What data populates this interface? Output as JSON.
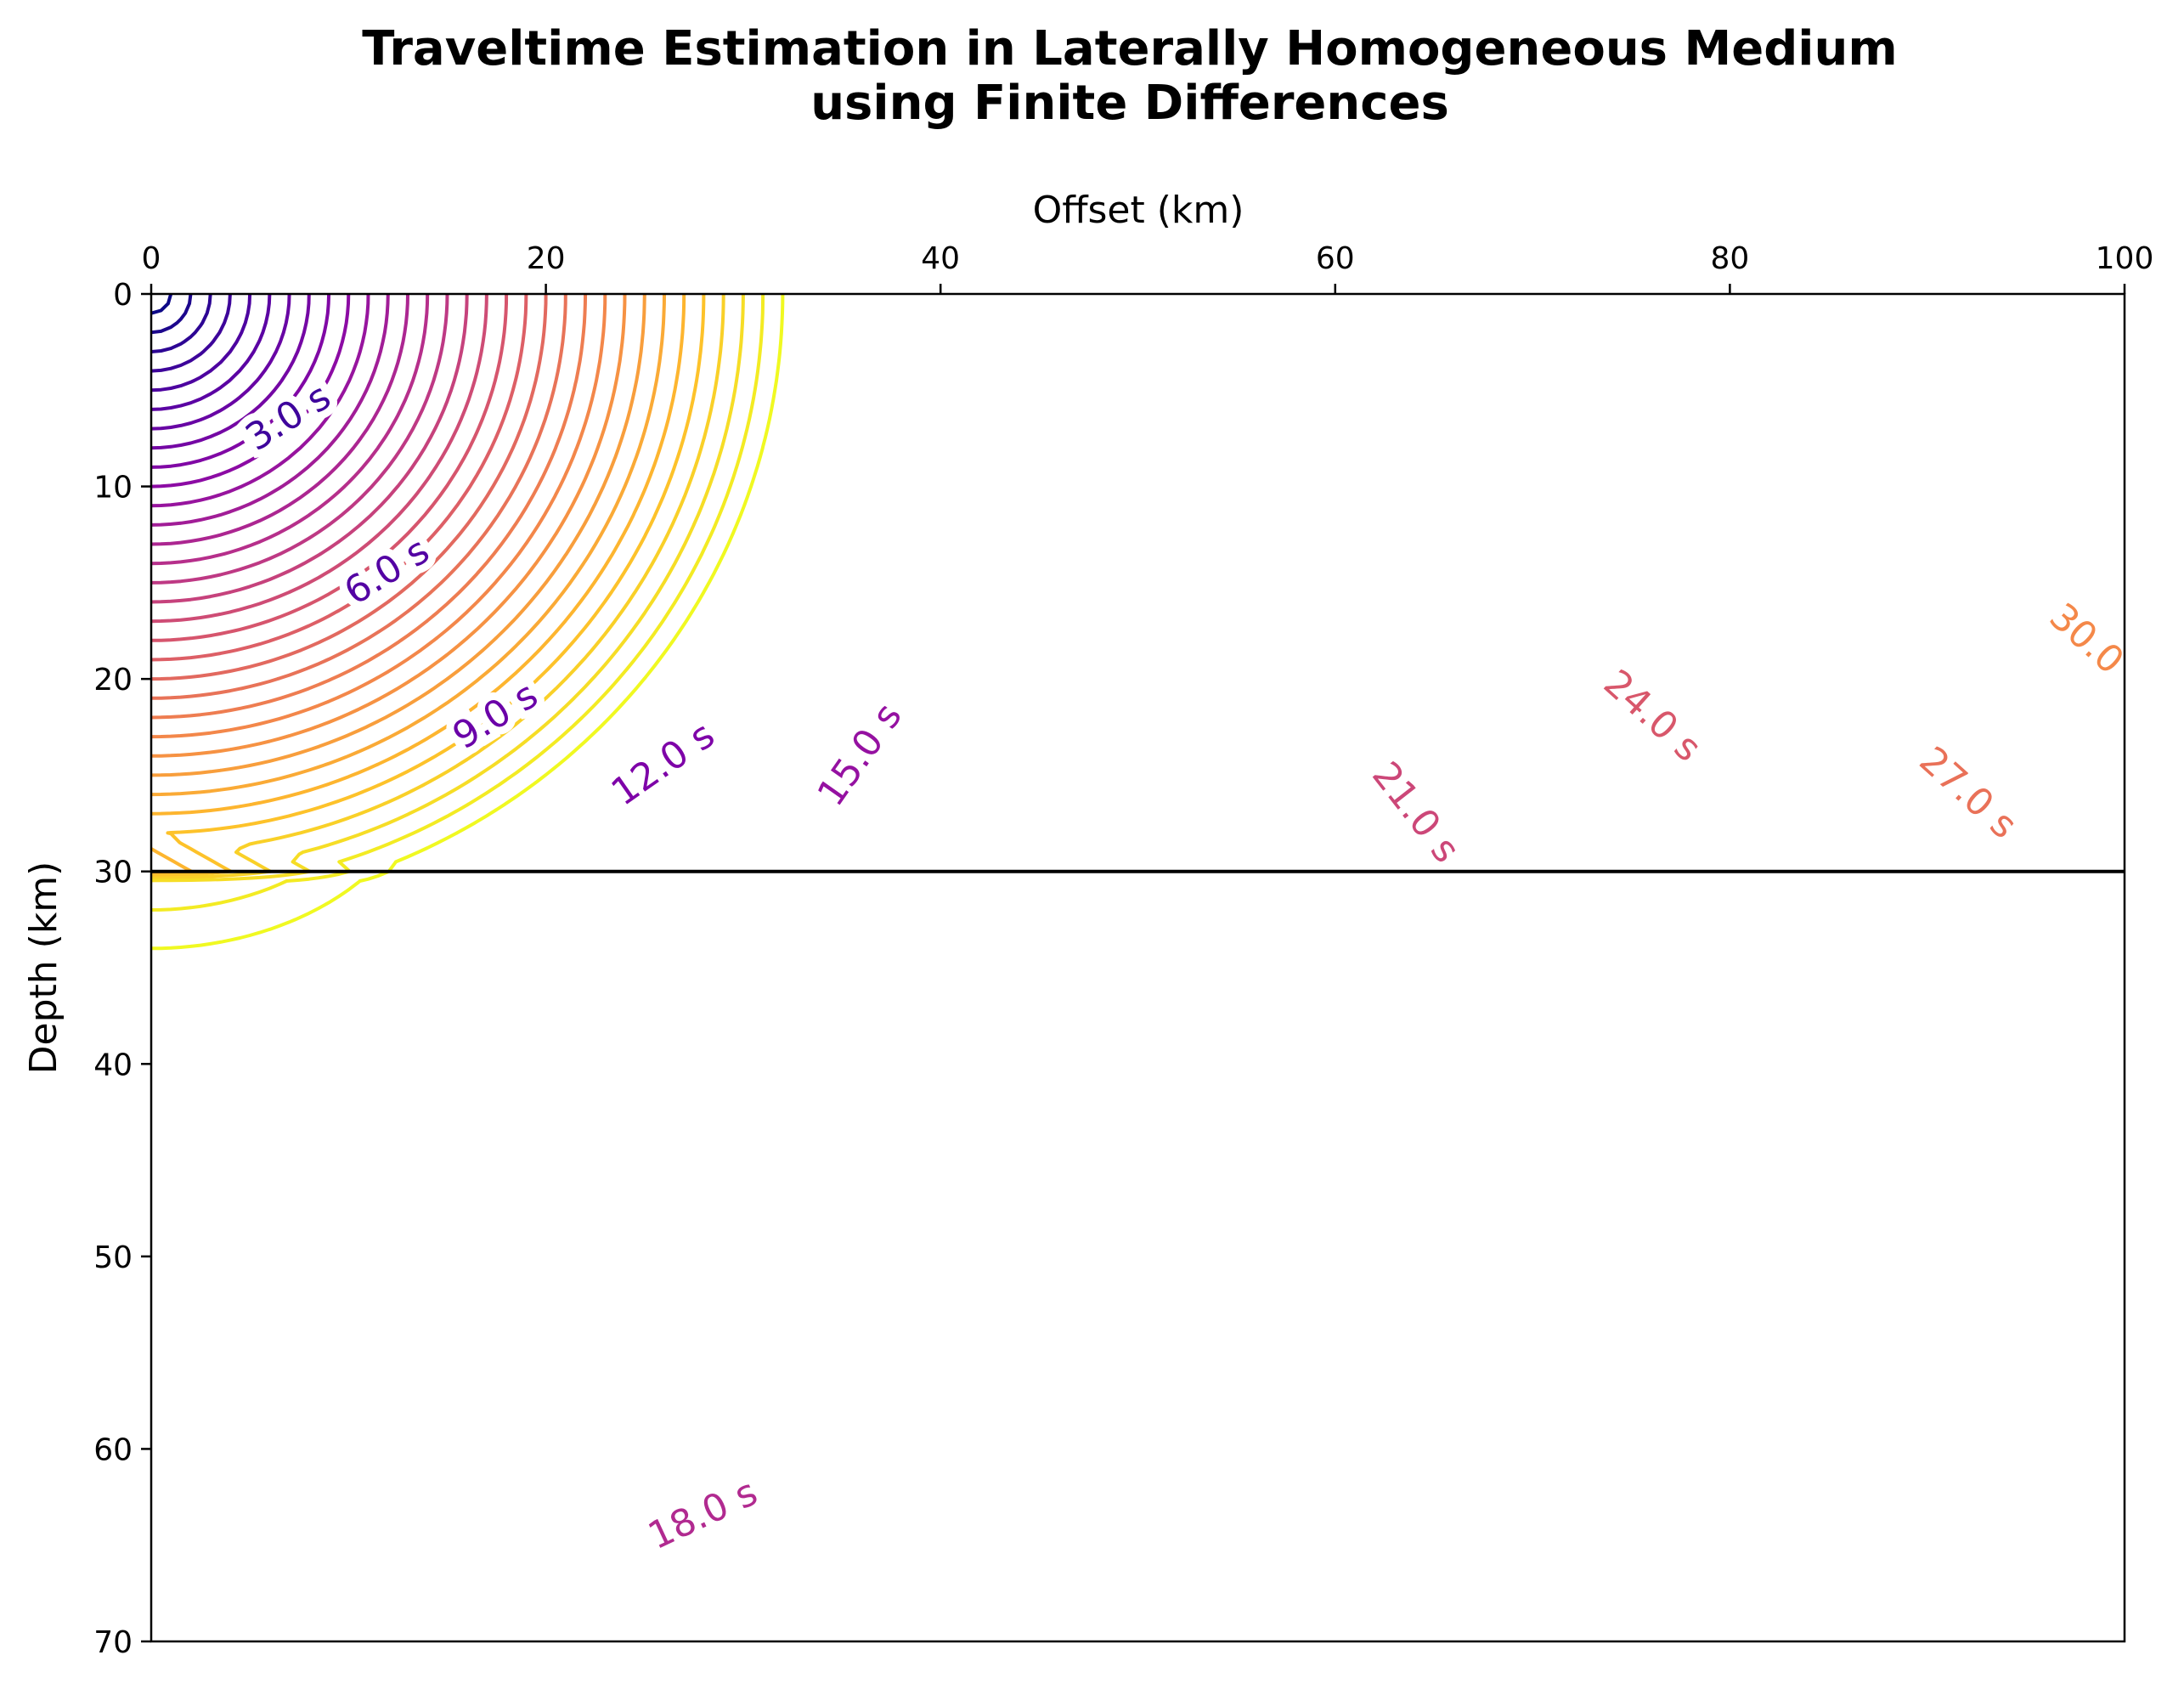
{
  "chart_data": {
    "type": "contour",
    "title_lines": [
      "Traveltime Estimation in Laterally Homogeneous Medium",
      "using Finite Differences"
    ],
    "xlabel": "Offset (km)",
    "ylabel": "Depth (km)",
    "xlim": [
      0,
      100
    ],
    "ylim": [
      0,
      70
    ],
    "y_inverted": true,
    "x_axis_position": "top",
    "x_ticks": [
      0,
      20,
      40,
      60,
      80,
      100
    ],
    "y_ticks": [
      0,
      10,
      20,
      30,
      40,
      50,
      60,
      70
    ],
    "x_tick_labels": [
      "0",
      "20",
      "40",
      "60",
      "80",
      "100"
    ],
    "y_tick_labels": [
      "0",
      "10",
      "20",
      "30",
      "40",
      "50",
      "60",
      "70"
    ],
    "colormap": "plasma",
    "contour_interval_s": 1.0,
    "contour_levels": [
      1,
      2,
      3,
      4,
      5,
      6,
      7,
      8,
      9,
      10,
      11,
      12,
      13,
      14,
      15,
      16,
      17,
      18,
      19,
      20,
      21,
      22,
      23,
      24,
      25,
      26,
      27,
      28,
      29,
      30,
      31,
      32
    ],
    "layer_interface_depth_km": 30,
    "interface_color": "#000000",
    "layers": [
      {
        "depth_range_km": [
          0,
          30
        ],
        "velocity_km_s": 1.0
      },
      {
        "depth_range_km": [
          30,
          70
        ],
        "velocity_km_s": 2.0
      }
    ],
    "source": {
      "x_km": 0,
      "z_km": 0
    },
    "contour_labels": [
      {
        "text": "3.0 s",
        "level": 3,
        "color": "#3e049c"
      },
      {
        "text": "6.0 s",
        "level": 6,
        "color": "#5302a3"
      },
      {
        "text": "9.0 s",
        "level": 9,
        "color": "#6a00a8"
      },
      {
        "text": "12.0 s",
        "level": 12,
        "color": "#7e03a8"
      },
      {
        "text": "15.0 s",
        "level": 15,
        "color": "#9511a1"
      },
      {
        "text": "18.0 s",
        "level": 18,
        "color": "#b12a90"
      },
      {
        "text": "21.0 s",
        "level": 21,
        "color": "#cc4778"
      },
      {
        "text": "24.0 s",
        "level": 24,
        "color": "#d8576b"
      },
      {
        "text": "27.0 s",
        "level": 27,
        "color": "#e97158"
      },
      {
        "text": "30.0",
        "level": 30,
        "color": "#f48849"
      }
    ]
  }
}
